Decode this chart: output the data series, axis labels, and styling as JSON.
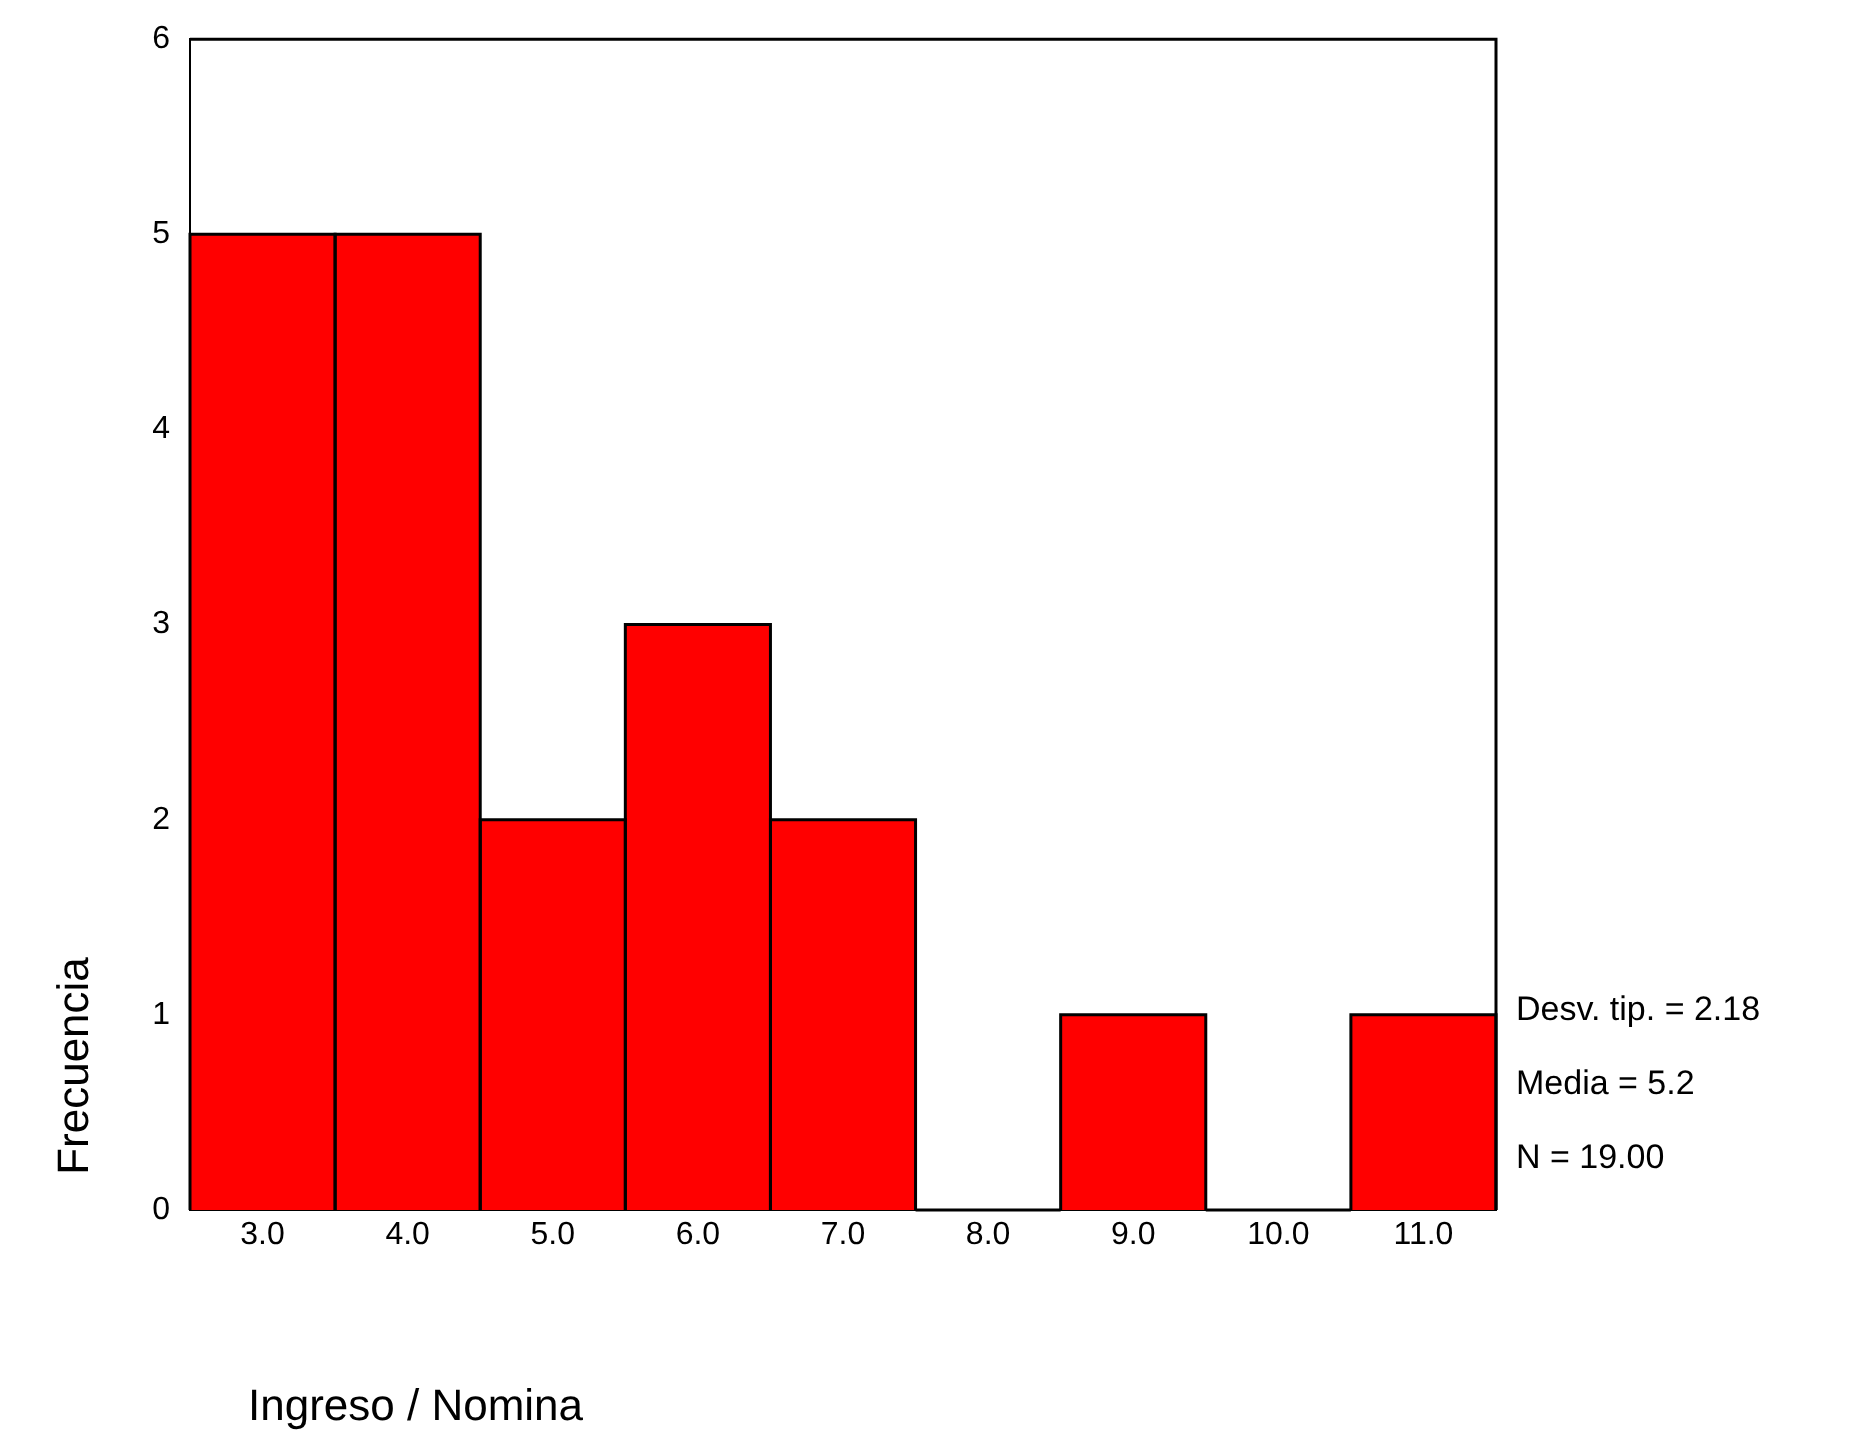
{
  "chart_data": {
    "type": "histogram",
    "xlabel": "Ingreso / Nomina",
    "ylabel": "Frecuencia",
    "bins": [
      2.5,
      3.5,
      4.5,
      5.5,
      6.5,
      7.5,
      8.5,
      9.5,
      10.5,
      11.5
    ],
    "values": [
      5,
      5,
      2,
      3,
      2,
      0,
      1,
      0,
      1
    ],
    "color": "#ff0000",
    "xlim": [
      2.5,
      11.5
    ],
    "xticks": [
      {
        "value": 3,
        "label": "3.0"
      },
      {
        "value": 4,
        "label": "4.0"
      },
      {
        "value": 5,
        "label": "5.0"
      },
      {
        "value": 6,
        "label": "6.0"
      },
      {
        "value": 7,
        "label": "7.0"
      },
      {
        "value": 8,
        "label": "8.0"
      },
      {
        "value": 9,
        "label": "9.0"
      },
      {
        "value": 10,
        "label": "10.0"
      },
      {
        "value": 11,
        "label": "11.0"
      }
    ],
    "ylim": [
      0,
      6
    ],
    "yticks": [
      0,
      1,
      2,
      3,
      4,
      5,
      6
    ],
    "annotations": [
      "Desv. tip. = 2.18",
      "Media = 5.2",
      "N = 19.00"
    ],
    "grid": false,
    "legend": false
  }
}
